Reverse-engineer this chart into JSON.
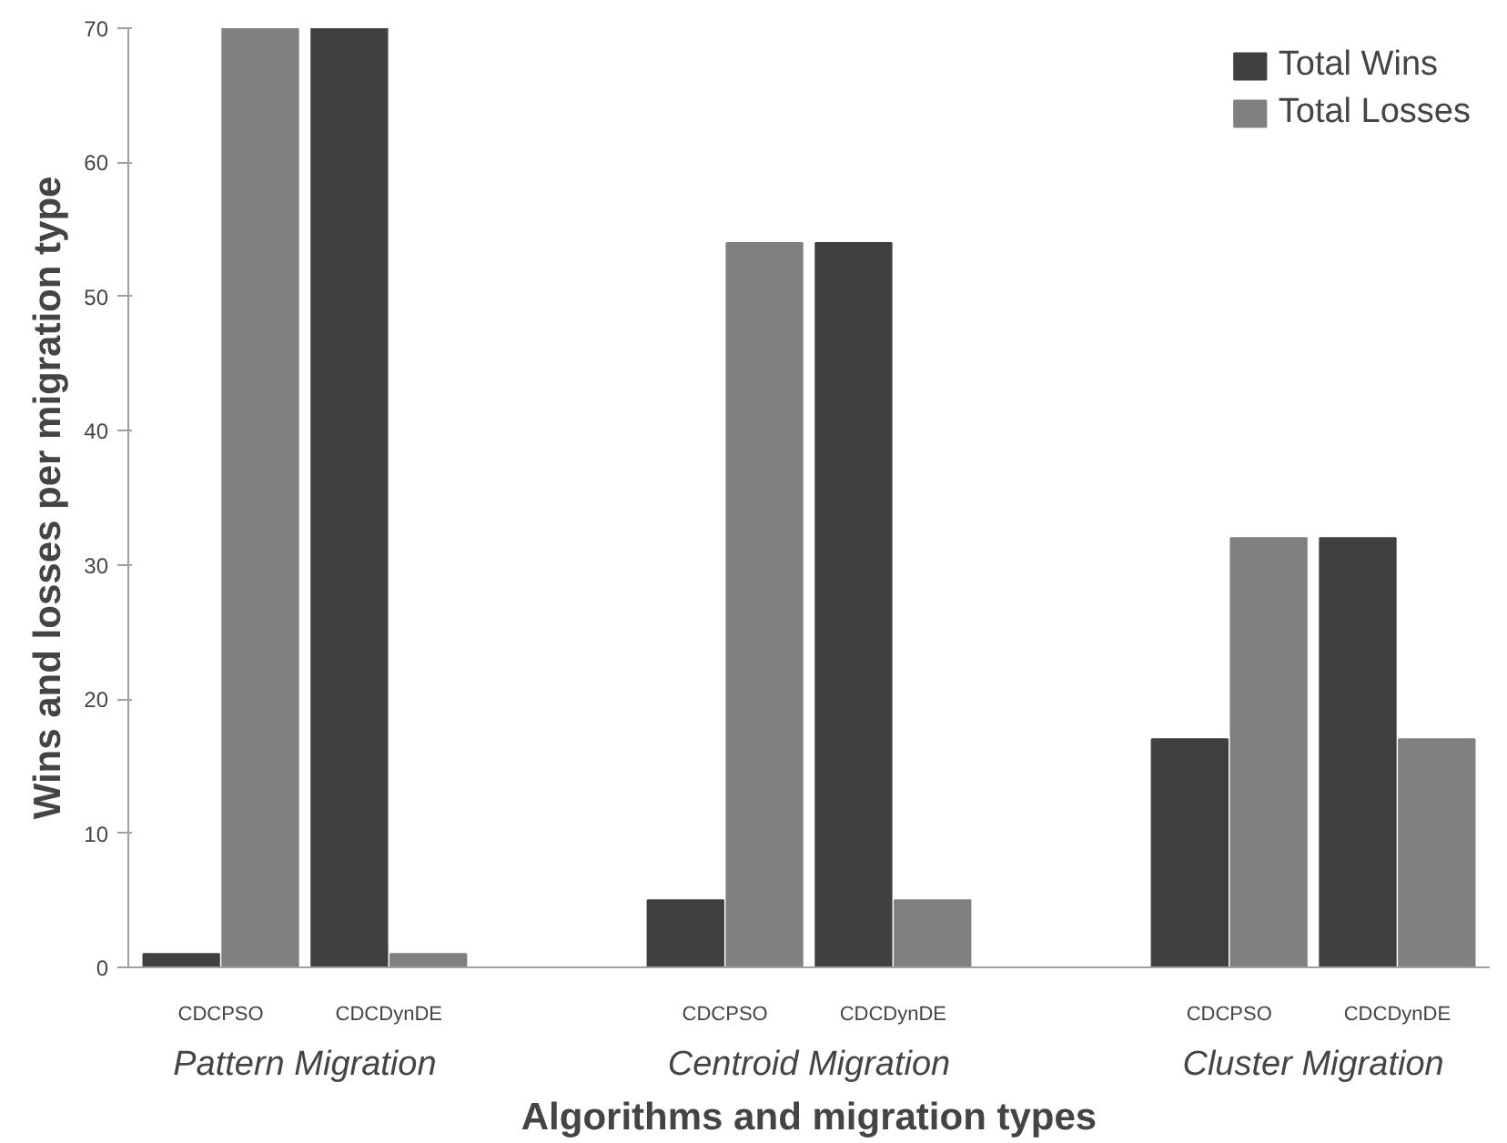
{
  "chart_data": {
    "type": "bar",
    "xlabel": "Algorithms and migration types",
    "ylabel": "Wins and losses per migration type",
    "categories": [
      "CDCPSO",
      "CDCDynDE",
      "CDCPSO",
      "CDCDynDE",
      "CDCPSO",
      "CDCDynDE"
    ],
    "series": [
      {
        "name": "Total Wins",
        "color": "#404040",
        "values": [
          1,
          70,
          5,
          54,
          17,
          32
        ]
      },
      {
        "name": "Total Losses",
        "color": "#808080",
        "values": [
          70,
          1,
          54,
          5,
          32,
          17
        ]
      }
    ],
    "annotations": [
      "Pattern Migration",
      "Centroid Migration",
      "Cluster Migration"
    ],
    "ylim": [
      0,
      70
    ],
    "yticks": [
      0,
      10,
      20,
      30,
      40,
      50,
      60,
      70
    ],
    "grid": false,
    "legend": "top right"
  }
}
